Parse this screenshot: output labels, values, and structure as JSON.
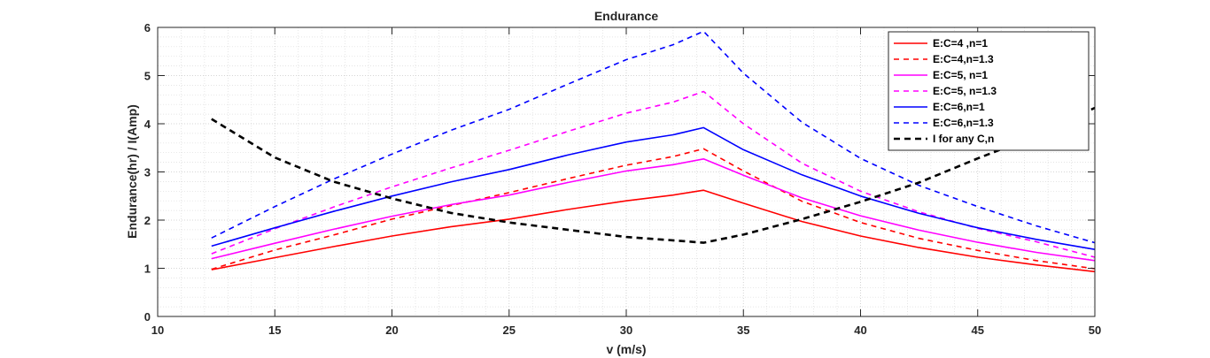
{
  "chart_data": {
    "type": "line",
    "title": "Endurance",
    "xlabel": "v (m/s)",
    "ylabel": "Endurance(hr) / I(Amp)",
    "xlim": [
      10,
      50
    ],
    "ylim": [
      0,
      6
    ],
    "xticks": [
      10,
      15,
      20,
      25,
      30,
      35,
      40,
      45,
      50
    ],
    "yticks": [
      0,
      1,
      2,
      3,
      4,
      5,
      6
    ],
    "grid": true,
    "minor_grid": true,
    "legend_position": "top-right",
    "series": [
      {
        "name": "E:C=4 ,n=1",
        "color": "#ff0000",
        "dash": "solid",
        "x": [
          12.3,
          15,
          17.5,
          20,
          22.5,
          25,
          27.5,
          30,
          32,
          33.3,
          35,
          37.5,
          40,
          42.5,
          45,
          47.5,
          50
        ],
        "y": [
          0.97,
          1.22,
          1.45,
          1.67,
          1.86,
          2.02,
          2.22,
          2.4,
          2.52,
          2.62,
          2.35,
          1.97,
          1.67,
          1.43,
          1.23,
          1.07,
          0.93
        ]
      },
      {
        "name": "E:C=4,n=1.3",
        "color": "#ff0000",
        "dash": "dashed",
        "x": [
          12.3,
          15,
          17.5,
          20,
          22.5,
          25,
          27.5,
          30,
          32,
          33.3,
          35,
          37.5,
          40,
          42.5,
          45,
          47.5,
          50
        ],
        "y": [
          0.98,
          1.38,
          1.69,
          2.02,
          2.3,
          2.57,
          2.86,
          3.14,
          3.32,
          3.48,
          3.02,
          2.39,
          1.95,
          1.62,
          1.37,
          1.16,
          0.99
        ]
      },
      {
        "name": "E:C=5, n=1",
        "color": "#ff00ff",
        "dash": "solid",
        "x": [
          12.3,
          15,
          17.5,
          20,
          22.5,
          25,
          27.5,
          30,
          32,
          33.3,
          35,
          37.5,
          40,
          42.5,
          45,
          47.5,
          50
        ],
        "y": [
          1.2,
          1.52,
          1.81,
          2.08,
          2.32,
          2.52,
          2.78,
          3.02,
          3.15,
          3.27,
          2.93,
          2.46,
          2.09,
          1.79,
          1.54,
          1.33,
          1.16
        ]
      },
      {
        "name": "E:C=5, n=1.3",
        "color": "#ff00ff",
        "dash": "dashed",
        "x": [
          12.3,
          15,
          17.5,
          20,
          22.5,
          25,
          27.5,
          30,
          32,
          33.3,
          35,
          37.5,
          40,
          42.5,
          45,
          47.5,
          50
        ],
        "y": [
          1.3,
          1.82,
          2.27,
          2.69,
          3.08,
          3.45,
          3.84,
          4.22,
          4.45,
          4.67,
          4.0,
          3.18,
          2.6,
          2.17,
          1.83,
          1.55,
          1.23
        ]
      },
      {
        "name": "E:C=6,n=1",
        "color": "#0000ff",
        "dash": "solid",
        "x": [
          12.3,
          15,
          17.5,
          20,
          22.5,
          25,
          27.5,
          30,
          32,
          33.3,
          35,
          37.5,
          40,
          42.5,
          45,
          47.5,
          50
        ],
        "y": [
          1.46,
          1.84,
          2.18,
          2.5,
          2.79,
          3.05,
          3.35,
          3.62,
          3.77,
          3.92,
          3.46,
          2.94,
          2.5,
          2.14,
          1.84,
          1.6,
          1.39
        ]
      },
      {
        "name": "E:C=6,n=1.3",
        "color": "#0000ff",
        "dash": "dashed",
        "x": [
          12.3,
          15,
          17.5,
          20,
          22.5,
          25,
          27.5,
          30,
          32,
          33.3,
          35,
          37.5,
          40,
          42.5,
          45,
          47.5,
          50
        ],
        "y": [
          1.63,
          2.28,
          2.85,
          3.37,
          3.86,
          4.3,
          4.82,
          5.33,
          5.64,
          5.92,
          5.05,
          4.03,
          3.28,
          2.72,
          2.28,
          1.88,
          1.53
        ]
      },
      {
        "name": "I for any C,n",
        "color": "#000000",
        "dash": "dashed-thick",
        "x": [
          12.3,
          15,
          17.5,
          20,
          22.5,
          25,
          27.5,
          30,
          32,
          33.3,
          35,
          37.5,
          40,
          42.5,
          45,
          47.5,
          50
        ],
        "y": [
          4.1,
          3.3,
          2.8,
          2.45,
          2.15,
          1.95,
          1.8,
          1.65,
          1.58,
          1.53,
          1.7,
          2.02,
          2.38,
          2.78,
          3.28,
          3.75,
          4.33
        ]
      }
    ]
  }
}
